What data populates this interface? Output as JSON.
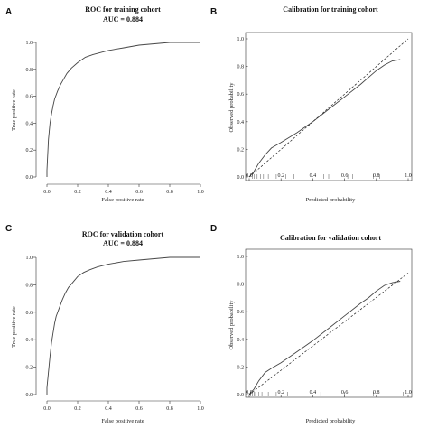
{
  "panels": [
    {
      "letter": "A",
      "title": "ROC for training cohort",
      "subtitle": "AUC = 0.884",
      "xlabel": "False positive rate",
      "ylabel": "True positive rate"
    },
    {
      "letter": "B",
      "title": "Calibration for training cohort",
      "xlabel": "Predicted probability",
      "ylabel": "Observed probability"
    },
    {
      "letter": "C",
      "title": "ROC for validation cohort",
      "subtitle": "AUC = 0.884",
      "xlabel": "False positive rate",
      "ylabel": "True positive rate"
    },
    {
      "letter": "D",
      "title": "Calibration for validation cohort",
      "xlabel": "Predicted probability",
      "ylabel": "Observed probability"
    }
  ],
  "chart_data": [
    {
      "type": "line",
      "title": "ROC for training cohort",
      "subtitle": "AUC = 0.884",
      "xlabel": "False positive rate",
      "ylabel": "True positive rate",
      "xlim": [
        0,
        1
      ],
      "ylim": [
        0,
        1
      ],
      "xticks": [
        "0.0",
        "0.2",
        "0.4",
        "0.6",
        "0.8",
        "1.0"
      ],
      "yticks": [
        "0.0",
        "0.2",
        "0.4",
        "0.6",
        "0.8",
        "1.0"
      ],
      "series": [
        {
          "x": [
            0.0,
            0.0,
            0.01,
            0.02,
            0.03,
            0.04,
            0.05,
            0.07,
            0.09,
            0.11,
            0.13,
            0.16,
            0.2,
            0.25,
            0.3,
            0.4,
            0.5,
            0.6,
            0.7,
            0.8,
            0.9,
            1.0
          ],
          "y": [
            0.0,
            0.05,
            0.28,
            0.4,
            0.47,
            0.53,
            0.58,
            0.64,
            0.69,
            0.73,
            0.77,
            0.81,
            0.85,
            0.89,
            0.91,
            0.94,
            0.96,
            0.98,
            0.99,
            1.0,
            1.0,
            1.0
          ]
        }
      ]
    },
    {
      "type": "line",
      "title": "Calibration for training cohort",
      "xlabel": "Predicted probability",
      "ylabel": "Observed probability",
      "xlim": [
        0,
        1
      ],
      "ylim": [
        0,
        1
      ],
      "xticks": [
        "0.0",
        "0.2",
        "0.4",
        "0.6",
        "0.8",
        "1.0"
      ],
      "yticks": [
        "0.0",
        "0.2",
        "0.4",
        "0.6",
        "0.8",
        "1.0"
      ],
      "series": [
        {
          "style": "solid",
          "x": [
            0.0,
            0.03,
            0.06,
            0.1,
            0.14,
            0.2,
            0.3,
            0.4,
            0.5,
            0.6,
            0.7,
            0.75,
            0.8,
            0.85,
            0.9,
            0.95
          ],
          "y": [
            0.0,
            0.04,
            0.1,
            0.16,
            0.21,
            0.25,
            0.32,
            0.4,
            0.49,
            0.58,
            0.67,
            0.72,
            0.77,
            0.81,
            0.84,
            0.85
          ]
        },
        {
          "style": "dashed",
          "x": [
            0.0,
            1.0
          ],
          "y": [
            0.0,
            1.0
          ]
        }
      ],
      "rug": [
        0.02,
        0.03,
        0.05,
        0.07,
        0.09,
        0.12,
        0.17,
        0.23,
        0.28,
        0.47,
        0.5,
        0.62,
        0.65,
        0.78,
        0.82
      ]
    },
    {
      "type": "line",
      "title": "ROC for validation cohort",
      "subtitle": "AUC = 0.884",
      "xlabel": "False positive rate",
      "ylabel": "True positive rate",
      "xlim": [
        0,
        1
      ],
      "ylim": [
        0,
        1
      ],
      "xticks": [
        "0.0",
        "0.2",
        "0.4",
        "0.6",
        "0.8",
        "1.0"
      ],
      "yticks": [
        "0.0",
        "0.2",
        "0.4",
        "0.6",
        "0.8",
        "1.0"
      ],
      "series": [
        {
          "x": [
            0.0,
            0.0,
            0.02,
            0.03,
            0.04,
            0.05,
            0.06,
            0.08,
            0.1,
            0.12,
            0.14,
            0.17,
            0.2,
            0.24,
            0.28,
            0.33,
            0.4,
            0.5,
            0.6,
            0.7,
            0.8,
            0.9,
            1.0
          ],
          "y": [
            0.0,
            0.05,
            0.28,
            0.38,
            0.45,
            0.52,
            0.57,
            0.63,
            0.69,
            0.74,
            0.78,
            0.82,
            0.86,
            0.89,
            0.91,
            0.93,
            0.95,
            0.97,
            0.98,
            0.99,
            1.0,
            1.0,
            1.0
          ]
        }
      ]
    },
    {
      "type": "line",
      "title": "Calibration for validation cohort",
      "xlabel": "Predicted probability",
      "ylabel": "Observed probability",
      "xlim": [
        0,
        1
      ],
      "ylim": [
        0,
        1
      ],
      "xticks": [
        "0.0",
        "0.2",
        "0.4",
        "0.6",
        "0.8",
        "1.0"
      ],
      "yticks": [
        "0.0",
        "0.2",
        "0.4",
        "0.6",
        "0.8",
        "1.0"
      ],
      "series": [
        {
          "style": "solid",
          "x": [
            0.0,
            0.03,
            0.06,
            0.1,
            0.14,
            0.2,
            0.3,
            0.4,
            0.5,
            0.6,
            0.7,
            0.75,
            0.8,
            0.85,
            0.9,
            0.95
          ],
          "y": [
            0.0,
            0.04,
            0.1,
            0.16,
            0.19,
            0.23,
            0.31,
            0.39,
            0.48,
            0.57,
            0.66,
            0.7,
            0.75,
            0.79,
            0.81,
            0.82
          ]
        },
        {
          "style": "dotted",
          "x": [
            0.0,
            1.0
          ],
          "y": [
            0.0,
            0.88
          ]
        }
      ],
      "rug": [
        0.01,
        0.02,
        0.03,
        0.04,
        0.06,
        0.08,
        0.12,
        0.17,
        0.24,
        0.45,
        0.6,
        0.78,
        0.97
      ]
    }
  ]
}
